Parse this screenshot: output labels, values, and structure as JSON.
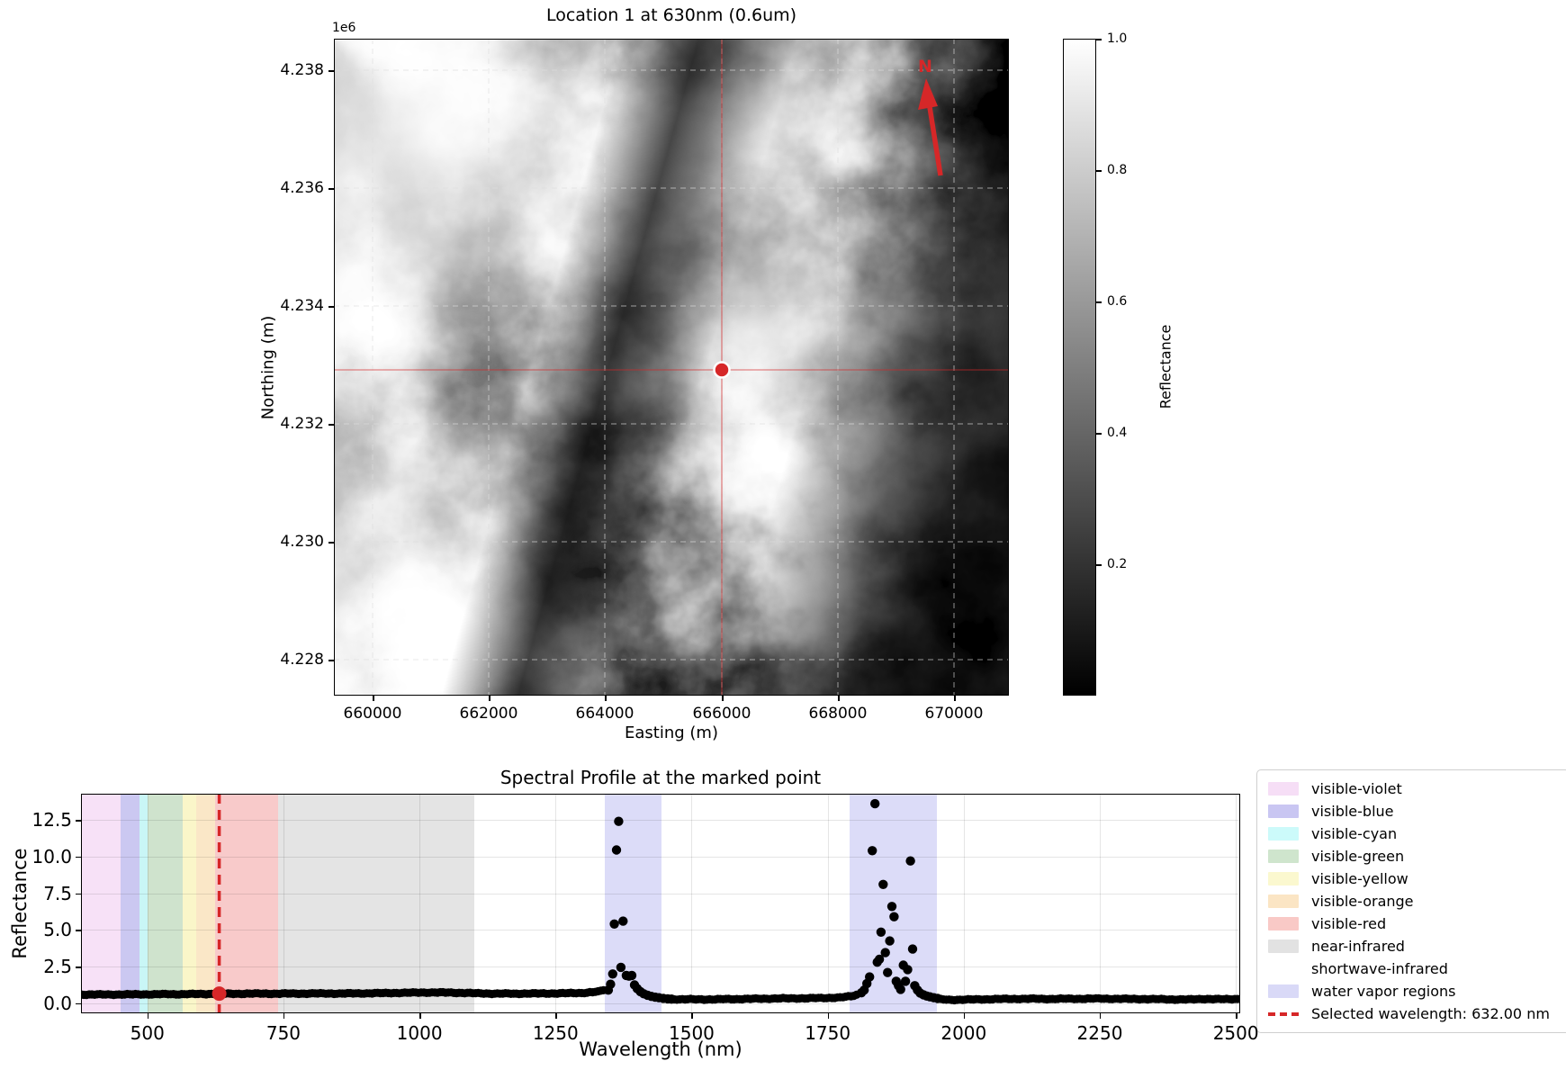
{
  "figure": {
    "background": "#ffffff",
    "accent_red": "#d62728"
  },
  "chart_data": [
    {
      "type": "heatmap",
      "title": "Location 1 at 630nm (0.6um)",
      "xlabel": "Easting (m)",
      "ylabel": "Northing (m)",
      "axis_offset_label": "1e6",
      "x_tick_labels": [
        "660000",
        "662000",
        "664000",
        "666000",
        "668000",
        "670000"
      ],
      "y_tick_labels": [
        "4.238",
        "4.236",
        "4.234",
        "4.232",
        "4.230",
        "4.228"
      ],
      "grid": true,
      "north_arrow_label": "N",
      "marked_point": {
        "easting_m": 666000,
        "northing_m": 4233000,
        "marker_color": "#d62728",
        "crosshair_color": "#d62728"
      },
      "colorbar": {
        "label": "Reflectance",
        "tick_labels": [
          "1.0",
          "0.8",
          "0.6",
          "0.4",
          "0.2"
        ],
        "vmin": 0.0,
        "vmax": 1.0,
        "colormap": "gray"
      }
    },
    {
      "type": "scatter",
      "title": "Spectral Profile at the marked point",
      "xlabel": "Wavelength (nm)",
      "ylabel": "Reflectance",
      "xlim": [
        378,
        2508
      ],
      "ylim": [
        -0.68,
        14.28
      ],
      "x_ticks": [
        500,
        750,
        1000,
        1250,
        1500,
        1750,
        2000,
        2250,
        2500
      ],
      "y_ticks": [
        0.0,
        2.5,
        5.0,
        7.5,
        10.0,
        12.5
      ],
      "grid": true,
      "point_color": "#000000",
      "sample_step_nm": 5,
      "baseline_segments": [
        [
          [
            378,
            0.6
          ],
          [
            430,
            0.6
          ],
          [
            480,
            0.61
          ],
          [
            530,
            0.62
          ],
          [
            580,
            0.63
          ],
          [
            632,
            0.65
          ],
          [
            690,
            0.66
          ],
          [
            740,
            0.66
          ],
          [
            800,
            0.67
          ],
          [
            860,
            0.67
          ],
          [
            920,
            0.69
          ],
          [
            980,
            0.72
          ],
          [
            1020,
            0.74
          ],
          [
            1060,
            0.73
          ],
          [
            1100,
            0.69
          ],
          [
            1140,
            0.66
          ],
          [
            1180,
            0.66
          ],
          [
            1220,
            0.67
          ],
          [
            1260,
            0.68
          ],
          [
            1300,
            0.71
          ],
          [
            1328,
            0.79
          ],
          [
            1342,
            0.95
          ]
        ],
        [
          [
            1468,
            0.28
          ],
          [
            1500,
            0.27
          ],
          [
            1540,
            0.27
          ],
          [
            1580,
            0.29
          ],
          [
            1620,
            0.31
          ],
          [
            1660,
            0.33
          ],
          [
            1700,
            0.34
          ],
          [
            1740,
            0.36
          ],
          [
            1772,
            0.4
          ],
          [
            1794,
            0.48
          ],
          [
            1806,
            0.6
          ]
        ],
        [
          [
            1958,
            0.27
          ],
          [
            1976,
            0.24
          ],
          [
            2000,
            0.25
          ],
          [
            2040,
            0.28
          ],
          [
            2080,
            0.3
          ],
          [
            2120,
            0.31
          ],
          [
            2160,
            0.3
          ],
          [
            2200,
            0.31
          ],
          [
            2250,
            0.32
          ],
          [
            2300,
            0.3
          ],
          [
            2340,
            0.29
          ],
          [
            2380,
            0.27
          ],
          [
            2410,
            0.26
          ],
          [
            2440,
            0.3
          ],
          [
            2470,
            0.28
          ],
          [
            2505,
            0.3
          ]
        ]
      ],
      "peak_points": [
        [
          1347,
          0.9
        ],
        [
          1351,
          1.3
        ],
        [
          1355,
          2.0
        ],
        [
          1358,
          5.4
        ],
        [
          1362,
          10.45
        ],
        [
          1366,
          12.4
        ],
        [
          1370,
          2.45
        ],
        [
          1374,
          5.6
        ],
        [
          1380,
          1.9
        ],
        [
          1385,
          1.85
        ],
        [
          1390,
          1.9
        ],
        [
          1395,
          1.25
        ],
        [
          1400,
          1.0
        ],
        [
          1406,
          0.8
        ],
        [
          1412,
          0.65
        ],
        [
          1419,
          0.55
        ],
        [
          1426,
          0.47
        ],
        [
          1433,
          0.42
        ],
        [
          1440,
          0.38
        ],
        [
          1448,
          0.34
        ],
        [
          1456,
          0.31
        ],
        [
          1463,
          0.29
        ],
        [
          1812,
          0.72
        ],
        [
          1817,
          0.9
        ],
        [
          1822,
          1.35
        ],
        [
          1827,
          1.8
        ],
        [
          1832,
          10.4
        ],
        [
          1837,
          13.6
        ],
        [
          1841,
          2.8
        ],
        [
          1845,
          3.0
        ],
        [
          1848,
          4.85
        ],
        [
          1852,
          8.1
        ],
        [
          1856,
          3.45
        ],
        [
          1860,
          2.1
        ],
        [
          1864,
          4.25
        ],
        [
          1868,
          6.6
        ],
        [
          1872,
          5.9
        ],
        [
          1876,
          1.5
        ],
        [
          1880,
          1.2
        ],
        [
          1884,
          0.95
        ],
        [
          1889,
          2.6
        ],
        [
          1893,
          1.5
        ],
        [
          1897,
          2.3
        ],
        [
          1902,
          9.7
        ],
        [
          1906,
          3.7
        ],
        [
          1910,
          1.2
        ],
        [
          1915,
          0.9
        ],
        [
          1920,
          0.7
        ],
        [
          1926,
          0.58
        ],
        [
          1932,
          0.5
        ],
        [
          1938,
          0.44
        ],
        [
          1945,
          0.38
        ],
        [
          1952,
          0.33
        ]
      ],
      "bands": [
        {
          "name": "visible-violet",
          "start_nm": 380,
          "end_nm": 450,
          "color": "#f7e1f7"
        },
        {
          "name": "visible-blue",
          "start_nm": 450,
          "end_nm": 485,
          "color": "#cbc8f1"
        },
        {
          "name": "visible-cyan",
          "start_nm": 485,
          "end_nm": 500,
          "color": "#c9f6f6"
        },
        {
          "name": "visible-green",
          "start_nm": 500,
          "end_nm": 565,
          "color": "#cfe3cd"
        },
        {
          "name": "visible-yellow",
          "start_nm": 565,
          "end_nm": 590,
          "color": "#faf6c9"
        },
        {
          "name": "visible-orange",
          "start_nm": 590,
          "end_nm": 625,
          "color": "#fae7c7"
        },
        {
          "name": "visible-red",
          "start_nm": 625,
          "end_nm": 740,
          "color": "#f8caca"
        },
        {
          "name": "near-infrared",
          "start_nm": 740,
          "end_nm": 1100,
          "color": "#e4e4e4"
        },
        {
          "name": "shortwave-infrared",
          "start_nm": 1100,
          "end_nm": 2500,
          "color": "#ffffff"
        }
      ],
      "water_vapor_regions": {
        "color": "#dcdcf8",
        "ranges": [
          [
            1340,
            1445
          ],
          [
            1790,
            1950
          ]
        ]
      },
      "selected_wavelength": {
        "nm": 632.0,
        "line_color": "#d62728",
        "marker_reflectance": 0.66
      },
      "legend": {
        "entries": [
          {
            "label": "visible-violet",
            "swatch": "#f6def6",
            "swatch_type": "patch"
          },
          {
            "label": "visible-blue",
            "swatch": "#c9c6f2",
            "swatch_type": "patch"
          },
          {
            "label": "visible-cyan",
            "swatch": "#ccfafa",
            "swatch_type": "patch"
          },
          {
            "label": "visible-green",
            "swatch": "#cfe5cd",
            "swatch_type": "patch"
          },
          {
            "label": "visible-yellow",
            "swatch": "#fbf8cf",
            "swatch_type": "patch"
          },
          {
            "label": "visible-orange",
            "swatch": "#fbe5c4",
            "swatch_type": "patch"
          },
          {
            "label": "visible-red",
            "swatch": "#f9c9c6",
            "swatch_type": "patch"
          },
          {
            "label": "near-infrared",
            "swatch": "#e2e2e2",
            "swatch_type": "patch"
          },
          {
            "label": "shortwave-infrared",
            "swatch": "#ffffff",
            "swatch_type": "patch"
          },
          {
            "label": "water vapor regions",
            "swatch": "#d9d9f7",
            "swatch_type": "patch"
          },
          {
            "label": "Selected wavelength: 632.00 nm",
            "swatch": "#d62728",
            "swatch_type": "dashed-line"
          }
        ]
      }
    }
  ]
}
